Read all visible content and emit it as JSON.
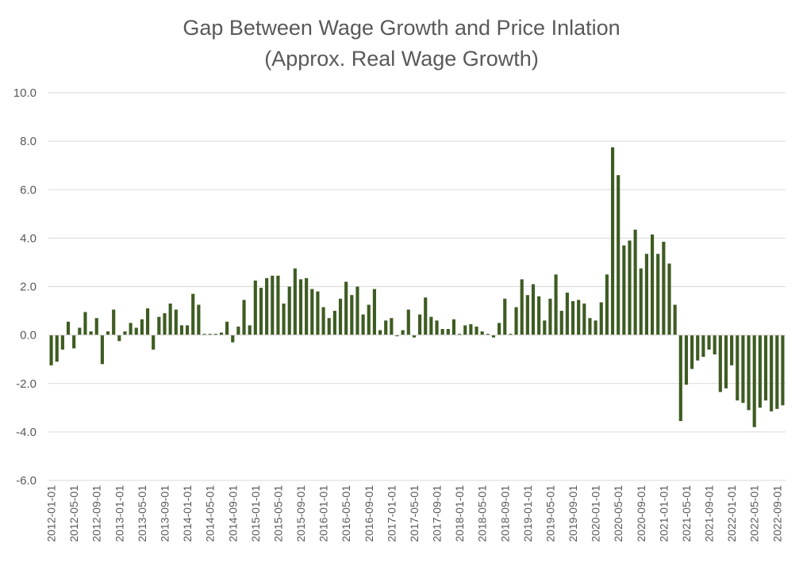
{
  "chart_data": {
    "type": "bar",
    "title": "Gap Between Wage Growth and Price Inlation",
    "subtitle": "(Approx. Real Wage Growth)",
    "xlabel": "",
    "ylabel": "",
    "ylim": [
      -6.0,
      10.0
    ],
    "ytick_labels": [
      "10.0",
      "8.0",
      "6.0",
      "4.0",
      "2.0",
      "0.0",
      "-2.0",
      "-4.0",
      "-6.0"
    ],
    "ytick_values": [
      10,
      8,
      6,
      4,
      2,
      0,
      -2,
      -4,
      -6
    ],
    "xtick_labels": [
      "2012-01-01",
      "2012-05-01",
      "2012-09-01",
      "2013-01-01",
      "2013-05-01",
      "2013-09-01",
      "2014-01-01",
      "2014-05-01",
      "2014-09-01",
      "2015-01-01",
      "2015-05-01",
      "2015-09-01",
      "2016-01-01",
      "2016-05-01",
      "2016-09-01",
      "2017-01-01",
      "2017-05-01",
      "2017-09-01",
      "2018-01-01",
      "2018-05-01",
      "2018-09-01",
      "2019-01-01",
      "2019-05-01",
      "2019-09-01",
      "2020-01-01",
      "2020-05-01",
      "2020-09-01",
      "2021-01-01",
      "2021-05-01",
      "2021-09-01",
      "2022-01-01",
      "2022-05-01",
      "2022-09-01"
    ],
    "start_month": "2012-01",
    "grid": true,
    "bar_color": "#3e5c22",
    "values": [
      -1.25,
      -1.1,
      -0.6,
      0.55,
      -0.55,
      0.3,
      0.95,
      0.15,
      0.7,
      -1.2,
      0.15,
      1.05,
      -0.25,
      0.15,
      0.5,
      0.3,
      0.65,
      1.1,
      -0.6,
      0.75,
      0.9,
      1.3,
      1.05,
      0.4,
      0.4,
      1.7,
      1.25,
      0.05,
      0.05,
      0.05,
      0.1,
      0.55,
      -0.3,
      0.35,
      1.45,
      0.4,
      2.25,
      1.95,
      2.35,
      2.45,
      2.45,
      1.3,
      2.0,
      2.75,
      2.3,
      2.35,
      1.9,
      1.8,
      1.15,
      0.7,
      1.0,
      1.5,
      2.2,
      1.65,
      2.0,
      0.85,
      1.25,
      1.9,
      0.2,
      0.6,
      0.7,
      -0.05,
      0.2,
      1.05,
      -0.1,
      0.85,
      1.55,
      0.75,
      0.6,
      0.25,
      0.25,
      0.65,
      0.05,
      0.4,
      0.45,
      0.35,
      0.15,
      0.05,
      -0.1,
      0.5,
      1.5,
      0.05,
      1.15,
      2.3,
      1.65,
      2.1,
      1.6,
      0.6,
      1.5,
      2.5,
      1.0,
      1.75,
      1.4,
      1.45,
      1.3,
      0.7,
      0.6,
      1.35,
      2.5,
      7.75,
      6.6,
      3.7,
      3.9,
      4.35,
      2.75,
      3.35,
      4.15,
      3.35,
      3.85,
      2.95,
      1.25,
      -3.55,
      -2.05,
      -1.4,
      -1.05,
      -0.9,
      -0.6,
      -0.8,
      -2.35,
      -2.2,
      -1.25,
      -2.7,
      -2.8,
      -3.1,
      -3.8,
      -3.0,
      -2.7,
      -3.15,
      -3.05,
      -2.9
    ]
  }
}
